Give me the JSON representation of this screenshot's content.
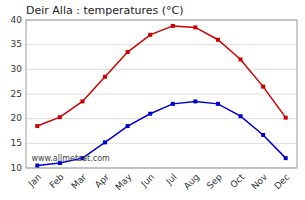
{
  "chart_data": {
    "type": "line",
    "title": "Deir Alla : temperatures (°C)",
    "categories": [
      "Jan",
      "Feb",
      "Mar",
      "Apr",
      "May",
      "Jun",
      "Jul",
      "Aug",
      "Sep",
      "Oct",
      "Nov",
      "Dec"
    ],
    "series": [
      {
        "color": "#cc0000",
        "marker": "square",
        "values": [
          18.5,
          20.3,
          23.5,
          28.5,
          33.5,
          37.0,
          38.8,
          38.5,
          36.0,
          32.0,
          26.5,
          20.2
        ]
      },
      {
        "color": "#0000cc",
        "marker": "square",
        "values": [
          10.5,
          11.0,
          12.0,
          15.2,
          18.5,
          21.0,
          23.0,
          23.5,
          23.0,
          20.5,
          16.7,
          12.0
        ]
      }
    ],
    "ylim": [
      10,
      40
    ],
    "yticks": [
      10,
      15,
      20,
      25,
      30,
      35,
      40
    ],
    "grid": true,
    "annotations": [
      "www.allmetsat.com"
    ]
  }
}
